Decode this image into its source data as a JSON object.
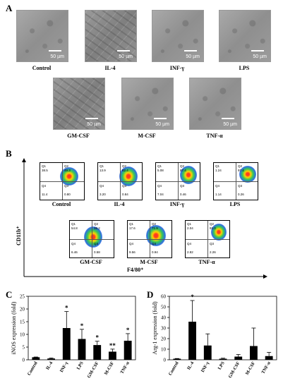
{
  "panels": {
    "A": "A",
    "B": "B",
    "C": "C",
    "D": "D"
  },
  "panelA": {
    "scale_label": "50 µm",
    "images": [
      {
        "label": "Control"
      },
      {
        "label": "IL-4"
      },
      {
        "label": "INF-γ"
      },
      {
        "label": "LPS"
      },
      {
        "label": "GM-CSF"
      },
      {
        "label": "M-CSF"
      },
      {
        "label": "TNF-α"
      }
    ]
  },
  "panelB": {
    "y_axis": "CD11b⁺",
    "x_axis": "F4/80⁺",
    "plots": [
      {
        "label": "Control",
        "q1": "Q1",
        "q2": "Q2",
        "q3": "Q3",
        "q4": "Q4",
        "q1v": "38.5",
        "q2v": "49.3",
        "q3v": "0.80",
        "q4v": "11.4"
      },
      {
        "label": "IL-4",
        "q1": "Q1",
        "q2": "Q2",
        "q3": "Q3",
        "q4": "Q4",
        "q1v": "13.9",
        "q2v": "82.4",
        "q3v": "0.84",
        "q4v": "3.20"
      },
      {
        "label": "INF-γ",
        "q1": "Q1",
        "q2": "Q2",
        "q3": "Q3",
        "q4": "Q4",
        "q1v": "5.08",
        "q2v": "87.4",
        "q3v": "0.46",
        "q4v": "7.04"
      },
      {
        "label": "LPS",
        "q1": "Q1",
        "q2": "Q2",
        "q3": "Q3",
        "q4": "Q4",
        "q1v": "1.24",
        "q2v": "97.4",
        "q3v": "0.26",
        "q4v": "1.14"
      },
      {
        "label": "GM-CSF",
        "q1": "Q1",
        "q2": "Q2",
        "q3": "Q3",
        "q4": "Q4",
        "q1v": "54.8",
        "q2v": "38.2",
        "q3v": "0.58",
        "q4v": "6.46"
      },
      {
        "label": "M-CSF",
        "q1": "Q1",
        "q2": "Q2",
        "q3": "Q3",
        "q4": "Q4",
        "q1v": "17.6",
        "q2v": "71.9",
        "q3v": "0.94",
        "q4v": "9.56"
      },
      {
        "label": "TNF-α",
        "q1": "Q1",
        "q2": "Q2",
        "q3": "Q3",
        "q4": "Q4",
        "q1v": "2.04",
        "q2v": "93.0",
        "q3v": "2.26",
        "q4v": "2.82"
      }
    ]
  },
  "chart_data": [
    {
      "type": "bar",
      "ylabel": "iNOS expression (fold)",
      "categories": [
        "Control",
        "IL-4",
        "INF-γ",
        "LPS",
        "GM-CSF",
        "M-CSF",
        "TNF-α"
      ],
      "values": [
        1,
        0.5,
        12.5,
        8.2,
        5.8,
        3.2,
        7.5
      ],
      "errors": [
        0.1,
        0.2,
        6.5,
        3.8,
        1.5,
        1.0,
        2.8
      ],
      "annotations": [
        "",
        "",
        "*",
        "*",
        "*",
        "**",
        "*"
      ],
      "ylim": [
        0,
        25
      ],
      "yticks": [
        0,
        5,
        10,
        15,
        20,
        25
      ]
    },
    {
      "type": "bar",
      "ylabel": "Arg-1 expression (fold)",
      "categories": [
        "Control",
        "IL-4",
        "INF-γ",
        "LPS",
        "GM-CSF",
        "M-CSF",
        "TNF-α"
      ],
      "values": [
        1,
        36,
        13.5,
        1,
        3,
        13,
        3.5
      ],
      "errors": [
        0.2,
        20,
        11,
        0.5,
        2,
        17,
        3.5
      ],
      "annotations": [
        "",
        "*",
        "",
        "",
        "",
        "",
        ""
      ],
      "ylim": [
        0,
        60
      ],
      "yticks": [
        0,
        10,
        20,
        30,
        40,
        50,
        60
      ]
    }
  ]
}
